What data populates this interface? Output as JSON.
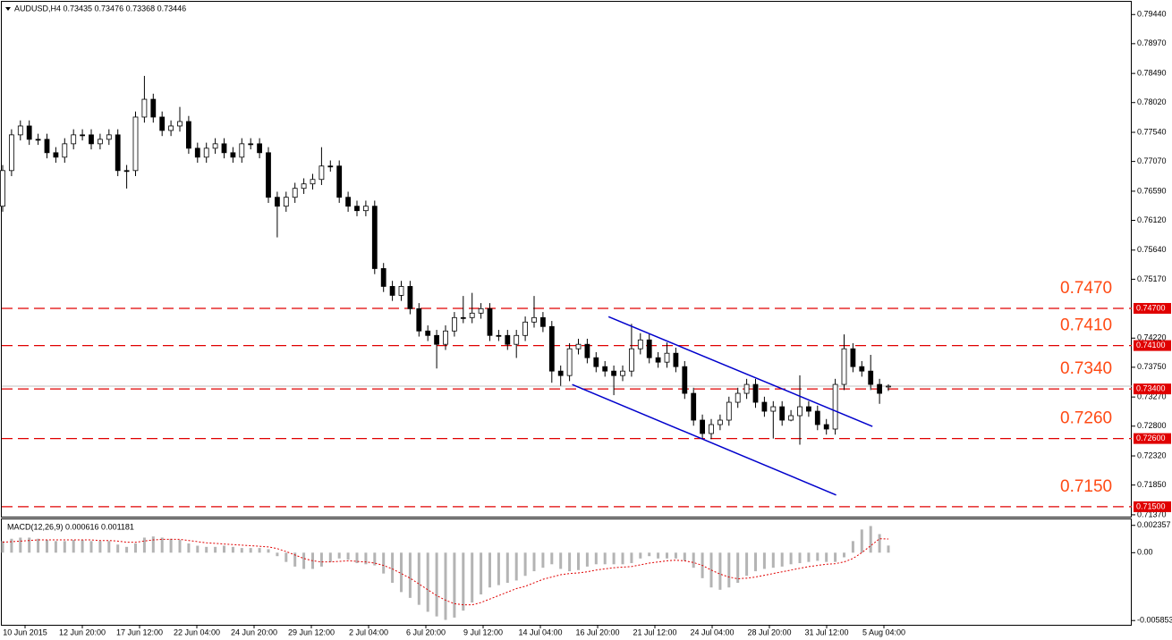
{
  "chart_data": {
    "type": "candlestick",
    "title": "AUDUSD,H4  0.73435 0.73476 0.73368 0.73446",
    "ylim": [
      0.7134,
      0.7966
    ],
    "yticks": [
      {
        "value": 0.7944,
        "label": "0.79440"
      },
      {
        "value": 0.7897,
        "label": "0.78970"
      },
      {
        "value": 0.7849,
        "label": "0.78490"
      },
      {
        "value": 0.7802,
        "label": "0.78020"
      },
      {
        "value": 0.7754,
        "label": "0.77540"
      },
      {
        "value": 0.7707,
        "label": "0.77070"
      },
      {
        "value": 0.7659,
        "label": "0.76590"
      },
      {
        "value": 0.7612,
        "label": "0.76120"
      },
      {
        "value": 0.7564,
        "label": "0.75640"
      },
      {
        "value": 0.7517,
        "label": "0.75170"
      },
      {
        "value": 0.7422,
        "label": "0.74220"
      },
      {
        "value": 0.7375,
        "label": "0.73750"
      },
      {
        "value": 0.7327,
        "label": "0.73270"
      },
      {
        "value": 0.728,
        "label": "0.72800"
      },
      {
        "value": 0.7232,
        "label": "0.72320"
      },
      {
        "value": 0.7185,
        "label": "0.71850"
      },
      {
        "value": 0.7137,
        "label": "0.71370"
      }
    ],
    "xlabels": [
      "10 Jun 2015",
      "12 Jun 20:00",
      "17 Jun 12:00",
      "22 Jun 04:00",
      "24 Jun 20:00",
      "29 Jun 12:00",
      "2 Jul 04:00",
      "6 Jul 20:00",
      "9 Jul 12:00",
      "14 Jul 04:00",
      "16 Jul 20:00",
      "21 Jul 12:00",
      "24 Jul 04:00",
      "28 Jul 20:00",
      "31 Jul 12:00",
      "5 Aug 04:00"
    ],
    "ohlc": [
      [
        0.76348,
        0.77013,
        0.76258,
        0.76923
      ],
      [
        0.76923,
        0.77589,
        0.76833,
        0.77499
      ],
      [
        0.77499,
        0.77732,
        0.77409,
        0.77642
      ],
      [
        0.77642,
        0.77732,
        0.77337,
        0.77427
      ],
      [
        0.77427,
        0.77517,
        0.77337,
        0.77427
      ],
      [
        0.77427,
        0.77517,
        0.77121,
        0.77211
      ],
      [
        0.77211,
        0.77301,
        0.77049,
        0.77139
      ],
      [
        0.77139,
        0.77445,
        0.77049,
        0.77355
      ],
      [
        0.77355,
        0.77589,
        0.77265,
        0.77499
      ],
      [
        0.77499,
        0.77589,
        0.77409,
        0.77499
      ],
      [
        0.77499,
        0.77589,
        0.77265,
        0.77355
      ],
      [
        0.77355,
        0.77517,
        0.77265,
        0.77427
      ],
      [
        0.77427,
        0.77589,
        0.77337,
        0.77499
      ],
      [
        0.77499,
        0.77589,
        0.76833,
        0.76923
      ],
      [
        0.76923,
        0.77013,
        0.76633,
        0.76923
      ],
      [
        0.76923,
        0.77876,
        0.76833,
        0.77786
      ],
      [
        0.77786,
        0.7845,
        0.77696,
        0.78073
      ],
      [
        0.78073,
        0.78163,
        0.77696,
        0.77786
      ],
      [
        0.77786,
        0.77876,
        0.7748,
        0.7757
      ],
      [
        0.7757,
        0.77732,
        0.7748,
        0.77642
      ],
      [
        0.77642,
        0.7795,
        0.77552,
        0.77714
      ],
      [
        0.77714,
        0.77804,
        0.77193,
        0.77283
      ],
      [
        0.77283,
        0.77373,
        0.77049,
        0.77139
      ],
      [
        0.77139,
        0.77373,
        0.77049,
        0.77283
      ],
      [
        0.77283,
        0.77445,
        0.77193,
        0.77355
      ],
      [
        0.77355,
        0.77445,
        0.77121,
        0.77211
      ],
      [
        0.77211,
        0.77301,
        0.77049,
        0.77139
      ],
      [
        0.77139,
        0.77445,
        0.77049,
        0.77355
      ],
      [
        0.77355,
        0.77445,
        0.77265,
        0.77355
      ],
      [
        0.77355,
        0.77445,
        0.77121,
        0.77211
      ],
      [
        0.77211,
        0.77301,
        0.76402,
        0.76492
      ],
      [
        0.76492,
        0.76582,
        0.75845,
        0.76348
      ],
      [
        0.76348,
        0.76582,
        0.76258,
        0.76492
      ],
      [
        0.76492,
        0.76726,
        0.76402,
        0.76636
      ],
      [
        0.76636,
        0.76798,
        0.76546,
        0.76708
      ],
      [
        0.76708,
        0.7687,
        0.76618,
        0.7678
      ],
      [
        0.7678,
        0.773,
        0.7669,
        0.76996
      ],
      [
        0.76996,
        0.77086,
        0.76906,
        0.76996
      ],
      [
        0.76996,
        0.77086,
        0.76402,
        0.76492
      ],
      [
        0.76492,
        0.76582,
        0.76258,
        0.76348
      ],
      [
        0.76348,
        0.76438,
        0.76186,
        0.76276
      ],
      [
        0.76276,
        0.76438,
        0.76186,
        0.76348
      ],
      [
        0.76348,
        0.76438,
        0.75252,
        0.75342
      ],
      [
        0.75342,
        0.75432,
        0.74964,
        0.75054
      ],
      [
        0.75054,
        0.75144,
        0.7482,
        0.7491
      ],
      [
        0.7491,
        0.75144,
        0.7482,
        0.75054
      ],
      [
        0.75054,
        0.75144,
        0.74605,
        0.74695
      ],
      [
        0.74695,
        0.74785,
        0.74245,
        0.74335
      ],
      [
        0.74335,
        0.74425,
        0.74173,
        0.74263
      ],
      [
        0.74263,
        0.74353,
        0.7373,
        0.7412
      ],
      [
        0.7412,
        0.74425,
        0.7403,
        0.74335
      ],
      [
        0.74335,
        0.74641,
        0.74245,
        0.74551
      ],
      [
        0.74551,
        0.749,
        0.74461,
        0.74551
      ],
      [
        0.74551,
        0.7495,
        0.74461,
        0.74623
      ],
      [
        0.74623,
        0.74785,
        0.74533,
        0.74695
      ],
      [
        0.74695,
        0.74785,
        0.74173,
        0.74263
      ],
      [
        0.74263,
        0.74353,
        0.74173,
        0.74263
      ],
      [
        0.74263,
        0.74353,
        0.7403,
        0.7412
      ],
      [
        0.7412,
        0.74353,
        0.739,
        0.74263
      ],
      [
        0.74263,
        0.74569,
        0.74173,
        0.74479
      ],
      [
        0.74479,
        0.749,
        0.74389,
        0.74551
      ],
      [
        0.74551,
        0.74641,
        0.74317,
        0.74407
      ],
      [
        0.74407,
        0.74497,
        0.735,
        0.73688
      ],
      [
        0.73688,
        0.73778,
        0.7345,
        0.73616
      ],
      [
        0.73616,
        0.74138,
        0.73526,
        0.74048
      ],
      [
        0.74048,
        0.7421,
        0.73958,
        0.7412
      ],
      [
        0.7412,
        0.7421,
        0.73814,
        0.73904
      ],
      [
        0.73904,
        0.73994,
        0.7367,
        0.7376
      ],
      [
        0.7376,
        0.7385,
        0.73598,
        0.73688
      ],
      [
        0.73688,
        0.73778,
        0.733,
        0.73616
      ],
      [
        0.73616,
        0.73778,
        0.73526,
        0.73688
      ],
      [
        0.73688,
        0.7445,
        0.73598,
        0.74048
      ],
      [
        0.74048,
        0.743,
        0.73958,
        0.74191
      ],
      [
        0.74191,
        0.74281,
        0.73814,
        0.73904
      ],
      [
        0.73904,
        0.73994,
        0.73742,
        0.73832
      ],
      [
        0.73832,
        0.7415,
        0.73742,
        0.73976
      ],
      [
        0.73976,
        0.74066,
        0.7367,
        0.7376
      ],
      [
        0.7376,
        0.7385,
        0.73239,
        0.73329
      ],
      [
        0.73329,
        0.73419,
        0.72807,
        0.72897
      ],
      [
        0.72897,
        0.72987,
        0.72591,
        0.72681
      ],
      [
        0.72681,
        0.72915,
        0.72591,
        0.72825
      ],
      [
        0.72825,
        0.72987,
        0.72735,
        0.72897
      ],
      [
        0.72897,
        0.73275,
        0.72807,
        0.73185
      ],
      [
        0.73185,
        0.73419,
        0.73095,
        0.73329
      ],
      [
        0.73329,
        0.73563,
        0.73239,
        0.73473
      ],
      [
        0.73473,
        0.73563,
        0.73095,
        0.73185
      ],
      [
        0.73185,
        0.73275,
        0.72951,
        0.73041
      ],
      [
        0.73041,
        0.73203,
        0.726,
        0.73113
      ],
      [
        0.73113,
        0.73203,
        0.72807,
        0.72897
      ],
      [
        0.72897,
        0.73059,
        0.72879,
        0.72969
      ],
      [
        0.72969,
        0.7362,
        0.725,
        0.73113
      ],
      [
        0.73113,
        0.73203,
        0.72951,
        0.73041
      ],
      [
        0.73041,
        0.73131,
        0.72735,
        0.72825
      ],
      [
        0.72825,
        0.72915,
        0.72663,
        0.72753
      ],
      [
        0.72753,
        0.73563,
        0.72663,
        0.73473
      ],
      [
        0.73473,
        0.7428,
        0.73383,
        0.74048
      ],
      [
        0.74048,
        0.74138,
        0.7367,
        0.7376
      ],
      [
        0.7376,
        0.7385,
        0.73598,
        0.73688
      ],
      [
        0.73688,
        0.7395,
        0.73383,
        0.73473
      ],
      [
        0.73473,
        0.73563,
        0.7316,
        0.73329
      ],
      [
        0.73435,
        0.73476,
        0.73368,
        0.73446
      ]
    ],
    "levels": [
      {
        "value": 0.747,
        "label": "0.7470",
        "tag": "0.74700"
      },
      {
        "value": 0.741,
        "label": "0.7410",
        "tag": "0.74100"
      },
      {
        "value": 0.734,
        "label": "0.7340",
        "tag": "0.73400"
      },
      {
        "value": 0.726,
        "label": "0.7260",
        "tag": "0.72600"
      },
      {
        "value": 0.715,
        "label": "0.7150",
        "tag": "0.71500"
      }
    ],
    "level_color": "#e00000",
    "trendlines": [
      {
        "x": [
          68.4,
          98.2
        ],
        "y": [
          0.74565,
          0.72796
        ]
      },
      {
        "x": [
          64.3,
          94.1
        ],
        "y": [
          0.73472,
          0.71689
        ]
      }
    ],
    "trendline_color": "#0000cc",
    "macd": {
      "label": "MACD(12,26,9) 0.000616 0.001181",
      "ylim": [
        -0.0063,
        0.0028
      ],
      "yticks": [
        0.002357,
        {
          "value": 0,
          "label": "0.00"
        },
        -0.005853
      ],
      "histogram_color": "#b4b4b4",
      "signal_color": "#e00000",
      "histogram": [
        0.001,
        0.0012,
        0.0013,
        0.0013,
        0.0012,
        0.0011,
        0.001,
        0.001,
        0.0011,
        0.0011,
        0.001,
        0.001,
        0.001,
        0.0007,
        0.0005,
        0.0008,
        0.0013,
        0.0014,
        0.0013,
        0.0012,
        0.0011,
        0.0008,
        0.0006,
        0.0005,
        0.0005,
        0.0006,
        0.0005,
        0.0004,
        0.0004,
        0.0004,
        0.0003,
        -0.0003,
        -0.0008,
        -0.0012,
        -0.0014,
        -0.0014,
        -0.0012,
        -0.0008,
        -0.0005,
        -0.0006,
        -0.0009,
        -0.001,
        -0.0011,
        -0.0018,
        -0.0026,
        -0.0034,
        -0.0039,
        -0.0045,
        -0.0051,
        -0.0055,
        -0.0058,
        -0.0056,
        -0.005,
        -0.0043,
        -0.0036,
        -0.003,
        -0.0028,
        -0.0026,
        -0.0024,
        -0.002,
        -0.0016,
        -0.0013,
        -0.001,
        -0.0014,
        -0.0016,
        -0.0015,
        -0.0012,
        -0.001,
        -0.001,
        -0.001,
        -0.001,
        -0.0009,
        -0.0005,
        -0.0003,
        -0.0005,
        -0.0005,
        -0.0005,
        -0.0007,
        -0.0013,
        -0.0022,
        -0.003,
        -0.0032,
        -0.003,
        -0.0026,
        -0.002,
        -0.0016,
        -0.0014,
        -0.0013,
        -0.0012,
        -0.001,
        -0.0009,
        -0.0008,
        -0.0007,
        -0.0008,
        -0.0008,
        -0.0004,
        0.001,
        0.002,
        0.0023,
        0.0016,
        0.000616
      ],
      "signal": [
        0.0009,
        0.00095,
        0.001,
        0.00105,
        0.0011,
        0.0011,
        0.0011,
        0.0011,
        0.0011,
        0.0011,
        0.0011,
        0.00105,
        0.00105,
        0.001,
        0.0009,
        0.0009,
        0.001,
        0.0011,
        0.00115,
        0.00115,
        0.00115,
        0.00105,
        0.00095,
        0.00085,
        0.0008,
        0.00075,
        0.0007,
        0.00065,
        0.0006,
        0.00055,
        0.0005,
        0.00035,
        0.0001,
        -0.0002,
        -0.0005,
        -0.0007,
        -0.0008,
        -0.0008,
        -0.00075,
        -0.0007,
        -0.00075,
        -0.0008,
        -0.0009,
        -0.0011,
        -0.0014,
        -0.0018,
        -0.0022,
        -0.0027,
        -0.0032,
        -0.0037,
        -0.0041,
        -0.0044,
        -0.0045,
        -0.0045,
        -0.0043,
        -0.004,
        -0.0037,
        -0.0034,
        -0.0031,
        -0.0029,
        -0.0026,
        -0.0023,
        -0.0021,
        -0.0019,
        -0.0018,
        -0.00175,
        -0.00165,
        -0.0015,
        -0.0014,
        -0.0013,
        -0.00125,
        -0.0012,
        -0.00105,
        -0.0009,
        -0.0008,
        -0.0007,
        -0.00065,
        -0.0007,
        -0.00085,
        -0.0011,
        -0.0015,
        -0.00185,
        -0.0021,
        -0.00225,
        -0.0022,
        -0.0021,
        -0.00195,
        -0.0018,
        -0.00165,
        -0.0015,
        -0.00135,
        -0.0012,
        -0.0011,
        -0.001,
        -0.00095,
        -0.0008,
        -0.0005,
        0.0,
        0.0006,
        0.0012,
        0.001181
      ]
    }
  }
}
